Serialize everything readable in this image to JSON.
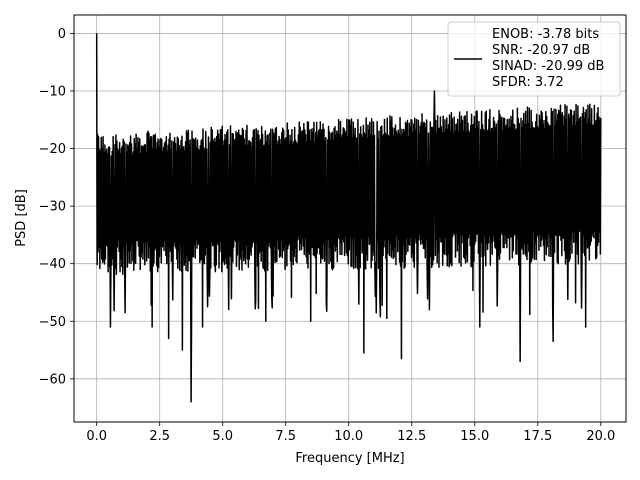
{
  "chart_data": {
    "type": "line",
    "xlabel": "Frequency [MHz]",
    "ylabel": "PSD [dB]",
    "xlim": [
      -0.9,
      21.0
    ],
    "ylim": [
      -67.5,
      3.2
    ],
    "xticks": [
      0.0,
      2.5,
      5.0,
      7.5,
      10.0,
      12.5,
      15.0,
      17.5,
      20.0
    ],
    "xtick_labels": [
      "0.0",
      "2.5",
      "5.0",
      "7.5",
      "10.0",
      "12.5",
      "15.0",
      "17.5",
      "20.0"
    ],
    "yticks": [
      0,
      -10,
      -20,
      -30,
      -40,
      -50,
      -60
    ],
    "ytick_labels": [
      "0",
      "−10",
      "−20",
      "−30",
      "−40",
      "−50",
      "−60"
    ],
    "grid": true,
    "legend_position": "top-right",
    "series": [
      {
        "name": "ENOB: -3.78 bits\nSNR: -20.97 dB\nSINAD: -20.99 dB\nSFDR: 3.72",
        "color": "#000000",
        "envelope": {
          "x_start": 0.0,
          "x_end": 20.0,
          "upper_start": -18.5,
          "upper_end": -13.0,
          "lower_start": -42.0,
          "lower_end": -40.0
        },
        "peak": {
          "x": 0.0,
          "y": 0.0
        },
        "deep_dips": [
          {
            "x": 0.55,
            "y": -51.0
          },
          {
            "x": 2.2,
            "y": -51.0
          },
          {
            "x": 2.85,
            "y": -53.0
          },
          {
            "x": 3.4,
            "y": -55.0
          },
          {
            "x": 3.75,
            "y": -64.0
          },
          {
            "x": 4.2,
            "y": -51.0
          },
          {
            "x": 6.7,
            "y": -50.0
          },
          {
            "x": 10.6,
            "y": -55.5
          },
          {
            "x": 12.1,
            "y": -56.5
          },
          {
            "x": 13.2,
            "y": -48.0
          },
          {
            "x": 15.2,
            "y": -51.0
          },
          {
            "x": 16.8,
            "y": -57.0
          },
          {
            "x": 18.1,
            "y": -53.5
          },
          {
            "x": 19.4,
            "y": -51.0
          },
          {
            "x": 13.4,
            "y": -10.0
          }
        ]
      }
    ],
    "legend_lines": [
      "ENOB: -3.78 bits",
      "SNR: -20.97 dB",
      "SINAD: -20.99 dB",
      "SFDR: 3.72"
    ]
  }
}
